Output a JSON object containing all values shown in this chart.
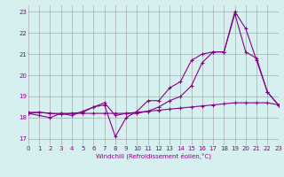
{
  "xlabel": "Windchill (Refroidissement éolien,°C)",
  "background_color": "#d6f0f0",
  "grid_color": "#aaaaaa",
  "line_color": "#880088",
  "x_ticks": [
    0,
    1,
    2,
    3,
    4,
    5,
    6,
    7,
    8,
    9,
    10,
    11,
    12,
    13,
    14,
    15,
    16,
    17,
    18,
    19,
    20,
    21,
    22,
    23
  ],
  "y_ticks": [
    17,
    18,
    19,
    20,
    21,
    22,
    23
  ],
  "xlim": [
    0,
    23
  ],
  "ylim": [
    16.7,
    23.3
  ],
  "series1_x": [
    0,
    1,
    2,
    3,
    4,
    5,
    6,
    7,
    8,
    9,
    10,
    11,
    12,
    13,
    14,
    15,
    16,
    17,
    18,
    19,
    20,
    21,
    22,
    23
  ],
  "series1_y": [
    18.25,
    18.25,
    18.2,
    18.2,
    18.2,
    18.2,
    18.2,
    18.2,
    18.2,
    18.2,
    18.25,
    18.3,
    18.35,
    18.4,
    18.45,
    18.5,
    18.55,
    18.6,
    18.65,
    18.7,
    18.7,
    18.7,
    18.7,
    18.6
  ],
  "series2_x": [
    0,
    1,
    2,
    3,
    4,
    5,
    6,
    7,
    8,
    9,
    10,
    11,
    12,
    13,
    14,
    15,
    16,
    17,
    18,
    19,
    20,
    21,
    22,
    23
  ],
  "series2_y": [
    18.2,
    18.1,
    18.0,
    18.2,
    18.1,
    18.3,
    18.5,
    18.6,
    17.1,
    18.0,
    18.3,
    18.8,
    18.8,
    19.4,
    19.7,
    20.7,
    21.0,
    21.1,
    21.1,
    22.9,
    21.1,
    20.8,
    19.2,
    18.6
  ],
  "series3_x": [
    0,
    1,
    2,
    3,
    4,
    5,
    6,
    7,
    8,
    9,
    10,
    11,
    12,
    13,
    14,
    15,
    16,
    17,
    18,
    19,
    20,
    21,
    22,
    23
  ],
  "series3_y": [
    18.2,
    18.25,
    18.2,
    18.15,
    18.2,
    18.25,
    18.5,
    18.7,
    18.1,
    18.2,
    18.2,
    18.3,
    18.5,
    18.8,
    19.0,
    19.5,
    20.6,
    21.1,
    21.1,
    23.0,
    22.2,
    20.7,
    19.2,
    18.6
  ]
}
